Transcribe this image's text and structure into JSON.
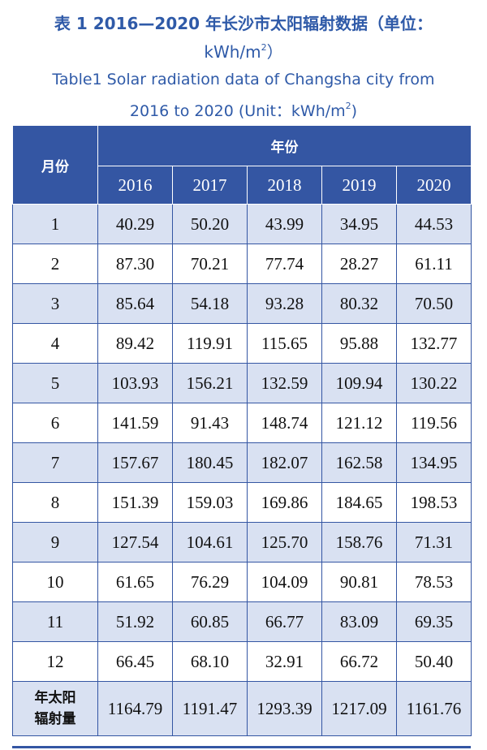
{
  "title": {
    "cn_line1": "表 1  2016—2020 年长沙市太阳辐射数据（单位：",
    "cn_line2_unit": "kWh/m",
    "cn_line2_sup": "2",
    "cn_line2_close": "）",
    "en_line1": "Table1  Solar radiation data of Changsha city from",
    "en_line2": "2016 to 2020 (Unit：kWh/m",
    "en_line2_sup": "2",
    "en_line2_close": ")"
  },
  "table": {
    "month_header": "月份",
    "year_header": "年份",
    "years": [
      "2016",
      "2017",
      "2018",
      "2019",
      "2020"
    ],
    "rows": [
      {
        "month": "1",
        "values": [
          "40.29",
          "50.20",
          "43.99",
          "34.95",
          "44.53"
        ]
      },
      {
        "month": "2",
        "values": [
          "87.30",
          "70.21",
          "77.74",
          "28.27",
          "61.11"
        ]
      },
      {
        "month": "3",
        "values": [
          "85.64",
          "54.18",
          "93.28",
          "80.32",
          "70.50"
        ]
      },
      {
        "month": "4",
        "values": [
          "89.42",
          "119.91",
          "115.65",
          "95.88",
          "132.77"
        ]
      },
      {
        "month": "5",
        "values": [
          "103.93",
          "156.21",
          "132.59",
          "109.94",
          "130.22"
        ]
      },
      {
        "month": "6",
        "values": [
          "141.59",
          "91.43",
          "148.74",
          "121.12",
          "119.56"
        ]
      },
      {
        "month": "7",
        "values": [
          "157.67",
          "180.45",
          "182.07",
          "162.58",
          "134.95"
        ]
      },
      {
        "month": "8",
        "values": [
          "151.39",
          "159.03",
          "169.86",
          "184.65",
          "198.53"
        ]
      },
      {
        "month": "9",
        "values": [
          "127.54",
          "104.61",
          "125.70",
          "158.76",
          "71.31"
        ]
      },
      {
        "month": "10",
        "values": [
          "61.65",
          "76.29",
          "104.09",
          "90.81",
          "78.53"
        ]
      },
      {
        "month": "11",
        "values": [
          "51.92",
          "60.85",
          "66.77",
          "83.09",
          "69.35"
        ]
      },
      {
        "month": "12",
        "values": [
          "66.45",
          "68.10",
          "32.91",
          "66.72",
          "50.40"
        ]
      }
    ],
    "total": {
      "label_line1": "年太阳",
      "label_line2": "辐射量",
      "values": [
        "1164.79",
        "1191.47",
        "1293.39",
        "1217.09",
        "1161.76"
      ]
    }
  },
  "colors": {
    "title": "#2f5aa8",
    "header_bg": "#3456a3",
    "band_bg": "#d9e1f2"
  }
}
